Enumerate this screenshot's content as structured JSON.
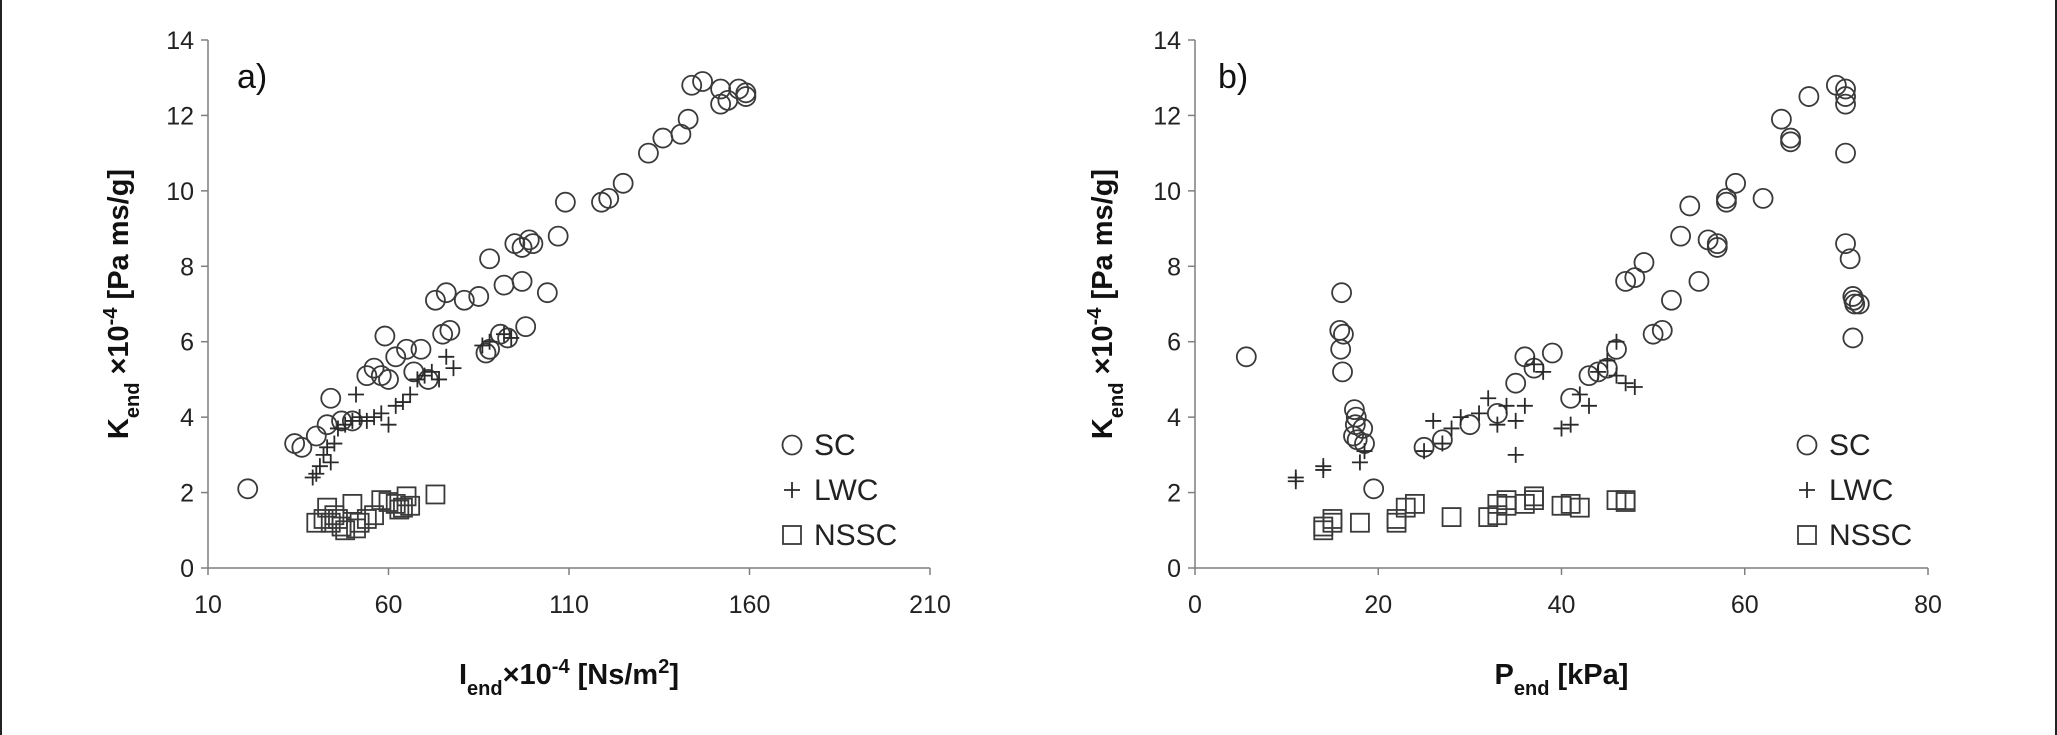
{
  "chart_data": [
    {
      "type": "scatter",
      "panel_label": "a)",
      "xlabel": {
        "base": "I",
        "sub": "end",
        "mid": "×10",
        "sup": "-4",
        "tail": " [Ns/m",
        "sup2": "2",
        "end": "]"
      },
      "ylabel": {
        "base": "K",
        "sub": "end",
        "mid": " ×10",
        "sup": "-4",
        "tail": "  [Pa ms/g]"
      },
      "xlim": [
        10,
        210
      ],
      "ylim": [
        0,
        14
      ],
      "xticks": [
        "10",
        "60",
        "110",
        "160",
        "210"
      ],
      "yticks": [
        "0",
        "2",
        "4",
        "6",
        "8",
        "10",
        "12",
        "14"
      ],
      "grid": false,
      "legend_position": "bottom-right",
      "series": [
        {
          "name": "SC",
          "marker": "circle",
          "points": [
            [
              21,
              2.1
            ],
            [
              34,
              3.3
            ],
            [
              36,
              3.2
            ],
            [
              40,
              3.5
            ],
            [
              43,
              3.8
            ],
            [
              44,
              4.5
            ],
            [
              47,
              3.9
            ],
            [
              50,
              3.9
            ],
            [
              54,
              5.1
            ],
            [
              56,
              5.3
            ],
            [
              58,
              5.1
            ],
            [
              59,
              6.15
            ],
            [
              60,
              5.0
            ],
            [
              62,
              5.6
            ],
            [
              65,
              5.8
            ],
            [
              67,
              5.2
            ],
            [
              69,
              5.8
            ],
            [
              71,
              5.0
            ],
            [
              73,
              7.1
            ],
            [
              75,
              6.2
            ],
            [
              76,
              7.3
            ],
            [
              77,
              6.3
            ],
            [
              81,
              7.1
            ],
            [
              85,
              7.2
            ],
            [
              87,
              5.7
            ],
            [
              88,
              8.2
            ],
            [
              88,
              5.8
            ],
            [
              91,
              6.2
            ],
            [
              92,
              7.5
            ],
            [
              93,
              6.1
            ],
            [
              95,
              8.6
            ],
            [
              97,
              8.5
            ],
            [
              97,
              7.6
            ],
            [
              98,
              6.4
            ],
            [
              99,
              8.7
            ],
            [
              100,
              8.6
            ],
            [
              104,
              7.3
            ],
            [
              107,
              8.8
            ],
            [
              109,
              9.7
            ],
            [
              119,
              9.7
            ],
            [
              121,
              9.8
            ],
            [
              125,
              10.2
            ],
            [
              132,
              11.0
            ],
            [
              136,
              11.4
            ],
            [
              141,
              11.5
            ],
            [
              143,
              11.9
            ],
            [
              144,
              12.8
            ],
            [
              147,
              12.9
            ],
            [
              152,
              12.7
            ],
            [
              152,
              12.3
            ],
            [
              154,
              12.4
            ],
            [
              157,
              12.7
            ],
            [
              159,
              12.6
            ],
            [
              159,
              12.5
            ]
          ]
        },
        {
          "name": "LWC",
          "marker": "plus",
          "points": [
            [
              39,
              2.4
            ],
            [
              40,
              2.5
            ],
            [
              41,
              2.7
            ],
            [
              42,
              3.0
            ],
            [
              43,
              3.2
            ],
            [
              44,
              2.8
            ],
            [
              45,
              3.3
            ],
            [
              46,
              3.7
            ],
            [
              48,
              3.8
            ],
            [
              50,
              3.9
            ],
            [
              51,
              4.6
            ],
            [
              52,
              4.0
            ],
            [
              54,
              3.9
            ],
            [
              56,
              4.0
            ],
            [
              58,
              4.1
            ],
            [
              60,
              3.8
            ],
            [
              62,
              4.3
            ],
            [
              64,
              4.4
            ],
            [
              66,
              4.6
            ],
            [
              68,
              5.0
            ],
            [
              70,
              5.1
            ],
            [
              72,
              5.2
            ],
            [
              74,
              5.0
            ],
            [
              76,
              5.6
            ],
            [
              78,
              5.3
            ],
            [
              86,
              5.9
            ],
            [
              88,
              6.0
            ],
            [
              92,
              6.2
            ],
            [
              94,
              6.1
            ]
          ]
        },
        {
          "name": "NSSC",
          "marker": "square",
          "points": [
            [
              40,
              1.2
            ],
            [
              42,
              1.3
            ],
            [
              43,
              1.6
            ],
            [
              44,
              1.2
            ],
            [
              45,
              1.4
            ],
            [
              46,
              1.3
            ],
            [
              47,
              1.1
            ],
            [
              48,
              1.0
            ],
            [
              50,
              1.7
            ],
            [
              51,
              1.05
            ],
            [
              52,
              1.2
            ],
            [
              54,
              1.3
            ],
            [
              56,
              1.4
            ],
            [
              58,
              1.8
            ],
            [
              60,
              1.75
            ],
            [
              62,
              1.7
            ],
            [
              63,
              1.55
            ],
            [
              64,
              1.6
            ],
            [
              65,
              1.9
            ],
            [
              66,
              1.65
            ],
            [
              73,
              1.95
            ]
          ]
        }
      ]
    },
    {
      "type": "scatter",
      "panel_label": "b)",
      "xlabel": {
        "base": "P",
        "sub": "end",
        "tail": "  [kPa]"
      },
      "ylabel": {
        "base": "K",
        "sub": "end",
        "mid": " ×10",
        "sup": "-4",
        "tail": "  [Pa ms/g]"
      },
      "xlim": [
        0,
        80
      ],
      "ylim": [
        0,
        14
      ],
      "xticks": [
        "0",
        "20",
        "40",
        "60",
        "80"
      ],
      "yticks": [
        "0",
        "2",
        "4",
        "6",
        "8",
        "10",
        "12",
        "14"
      ],
      "grid": false,
      "legend_position": "bottom-right",
      "series": [
        {
          "name": "SC",
          "marker": "circle",
          "points": [
            [
              5.6,
              5.6
            ],
            [
              16,
              7.3
            ],
            [
              15.8,
              6.3
            ],
            [
              16.2,
              6.2
            ],
            [
              15.9,
              5.8
            ],
            [
              16.1,
              5.2
            ],
            [
              17.4,
              4.2
            ],
            [
              17.6,
              4.0
            ],
            [
              17.5,
              3.8
            ],
            [
              17.3,
              3.5
            ],
            [
              17.7,
              3.4
            ],
            [
              18.3,
              3.7
            ],
            [
              18.5,
              3.3
            ],
            [
              19.5,
              2.1
            ],
            [
              25,
              3.2
            ],
            [
              27,
              3.4
            ],
            [
              30,
              3.8
            ],
            [
              33,
              4.1
            ],
            [
              35,
              4.9
            ],
            [
              36,
              5.6
            ],
            [
              37,
              5.3
            ],
            [
              39,
              5.7
            ],
            [
              41,
              4.5
            ],
            [
              43,
              5.1
            ],
            [
              44,
              5.2
            ],
            [
              45,
              5.3
            ],
            [
              46,
              5.8
            ],
            [
              47,
              7.6
            ],
            [
              49,
              8.1
            ],
            [
              48,
              7.7
            ],
            [
              50,
              6.2
            ],
            [
              51,
              6.3
            ],
            [
              52,
              7.1
            ],
            [
              53,
              8.8
            ],
            [
              54,
              9.6
            ],
            [
              55,
              7.6
            ],
            [
              56,
              8.7
            ],
            [
              57,
              8.6
            ],
            [
              57,
              8.5
            ],
            [
              58,
              9.8
            ],
            [
              58,
              9.7
            ],
            [
              59,
              10.2
            ],
            [
              62,
              9.8
            ],
            [
              64,
              11.9
            ],
            [
              65,
              11.4
            ],
            [
              65,
              11.3
            ],
            [
              67,
              12.5
            ],
            [
              70,
              12.8
            ],
            [
              71,
              12.7
            ],
            [
              71,
              12.5
            ],
            [
              71,
              12.3
            ],
            [
              71,
              11.0
            ],
            [
              71,
              8.6
            ],
            [
              71.5,
              8.2
            ],
            [
              71.8,
              7.2
            ],
            [
              71.9,
              7.1
            ],
            [
              72,
              7.0
            ],
            [
              72.5,
              7.0
            ],
            [
              71.8,
              6.1
            ]
          ]
        },
        {
          "name": "LWC",
          "marker": "plus",
          "points": [
            [
              11,
              2.3
            ],
            [
              11,
              2.4
            ],
            [
              14,
              2.6
            ],
            [
              14,
              2.7
            ],
            [
              18,
              2.8
            ],
            [
              18.5,
              3.1
            ],
            [
              25,
              3.1
            ],
            [
              26,
              3.9
            ],
            [
              27,
              3.3
            ],
            [
              28,
              3.7
            ],
            [
              29,
              4.0
            ],
            [
              31,
              4.1
            ],
            [
              32,
              4.5
            ],
            [
              33,
              3.8
            ],
            [
              34,
              4.3
            ],
            [
              35,
              3.0
            ],
            [
              35,
              3.9
            ],
            [
              36,
              4.3
            ],
            [
              37,
              5.4
            ],
            [
              38,
              5.2
            ],
            [
              40,
              3.7
            ],
            [
              41,
              3.8
            ],
            [
              42,
              4.6
            ],
            [
              43,
              4.3
            ],
            [
              44,
              5.2
            ],
            [
              45,
              5.5
            ],
            [
              46,
              6.0
            ],
            [
              46,
              5.1
            ],
            [
              47,
              4.9
            ],
            [
              48,
              4.8
            ]
          ]
        },
        {
          "name": "NSSC",
          "marker": "square",
          "points": [
            [
              14,
              1.0
            ],
            [
              14,
              1.1
            ],
            [
              15,
              1.3
            ],
            [
              15,
              1.2
            ],
            [
              18,
              1.2
            ],
            [
              22,
              1.2
            ],
            [
              22,
              1.3
            ],
            [
              23,
              1.6
            ],
            [
              24,
              1.7
            ],
            [
              28,
              1.35
            ],
            [
              32,
              1.35
            ],
            [
              33,
              1.4
            ],
            [
              33,
              1.7
            ],
            [
              34,
              1.65
            ],
            [
              34,
              1.8
            ],
            [
              36,
              1.7
            ],
            [
              37,
              1.9
            ],
            [
              37,
              1.8
            ],
            [
              40,
              1.65
            ],
            [
              41,
              1.7
            ],
            [
              42,
              1.6
            ],
            [
              46,
              1.8
            ],
            [
              47,
              1.75
            ],
            [
              47,
              1.8
            ]
          ]
        }
      ]
    }
  ]
}
